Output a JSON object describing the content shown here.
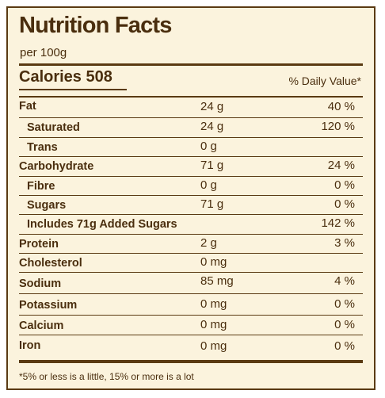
{
  "title": "Nutrition Facts",
  "serving": "per 100g",
  "calories": "Calories 508",
  "dv_header": "% Daily Value*",
  "rows": [
    {
      "name": "Fat",
      "amount": "24 g",
      "dv": "40 %"
    },
    {
      "name": "Saturated",
      "amount": "24 g",
      "dv": "120 %"
    },
    {
      "name": "Trans",
      "amount": "0 g",
      "dv": ""
    },
    {
      "name": "Carbohydrate",
      "amount": "71 g",
      "dv": "24 %"
    },
    {
      "name": "Fibre",
      "amount": "0 g",
      "dv": "0 %"
    },
    {
      "name": "Sugars",
      "amount": "71 g",
      "dv": "0 %"
    },
    {
      "name": "Includes 71g Added Sugars",
      "amount": "",
      "dv": "142 %"
    },
    {
      "name": "Protein",
      "amount": "2 g",
      "dv": "3 %"
    },
    {
      "name": "Cholesterol",
      "amount": "0 mg",
      "dv": ""
    },
    {
      "name": "Sodium",
      "amount": "85 mg",
      "dv": "4 %"
    },
    {
      "name": "Potassium",
      "amount": "0 mg",
      "dv": "0 %"
    },
    {
      "name": "Calcium",
      "amount": "0 mg",
      "dv": "0 %"
    },
    {
      "name": "Iron",
      "amount": "0 mg",
      "dv": "0 %"
    }
  ],
  "footnote": "*5% or less is a little, 15% or more is a lot",
  "colors": {
    "background": "#fbf3dd",
    "text": "#4a2e0e",
    "rule": "#5a3a12"
  }
}
